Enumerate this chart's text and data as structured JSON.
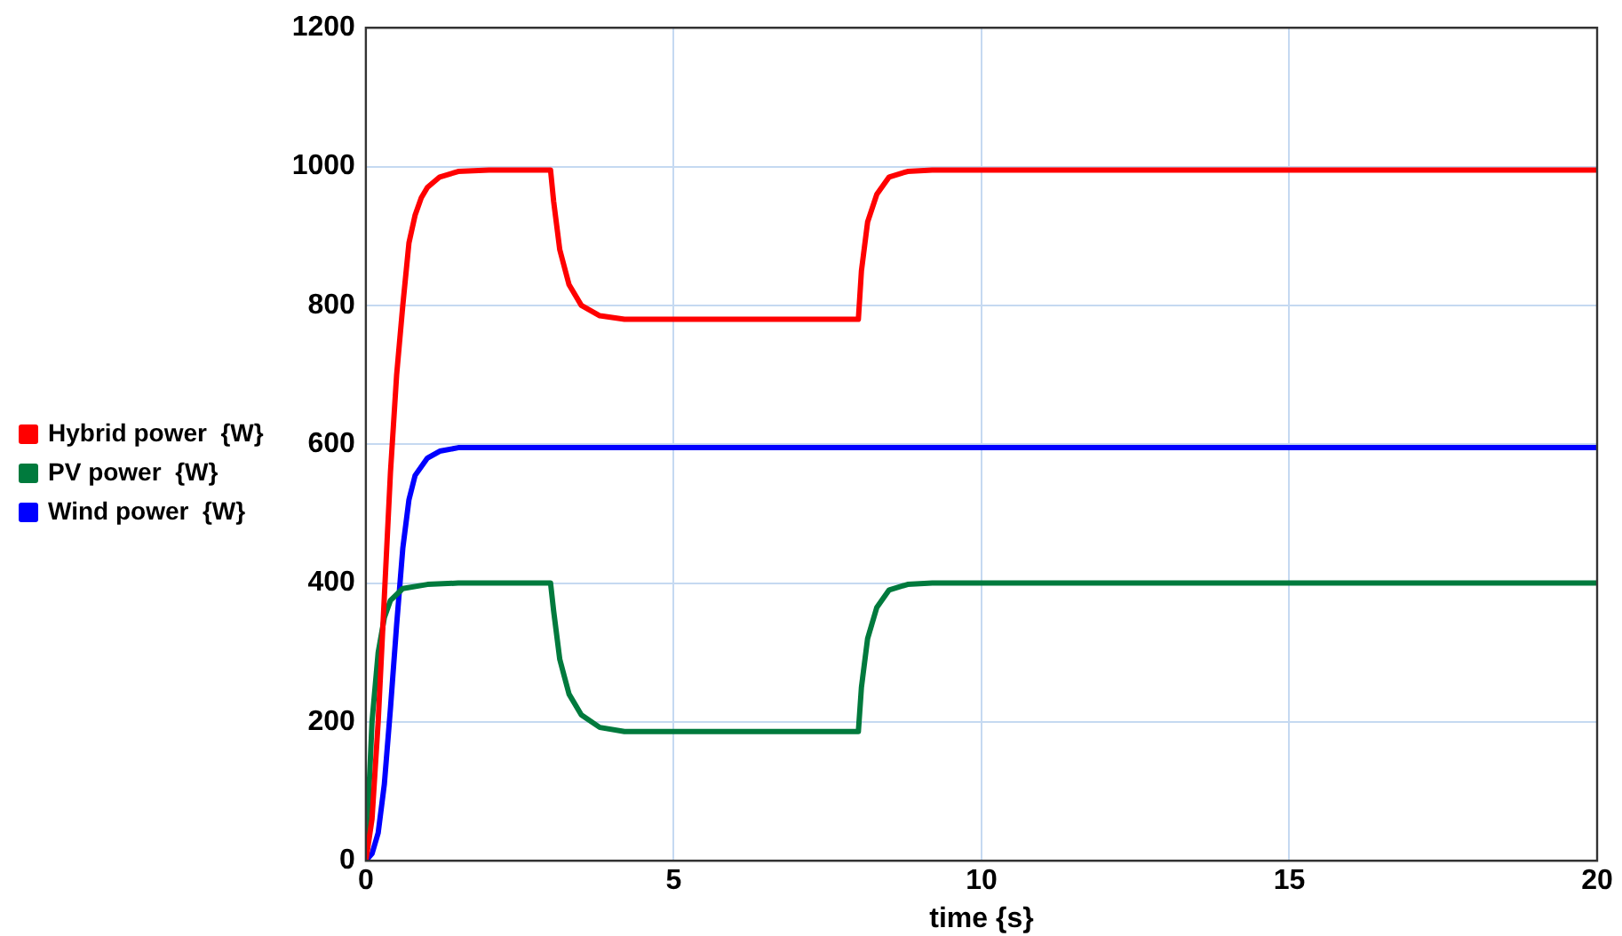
{
  "chart_data": {
    "type": "line",
    "xlabel": "time {s}",
    "xlim": [
      0,
      20
    ],
    "xticks": [
      0,
      5,
      10,
      15,
      20
    ],
    "ylim": [
      0,
      1200
    ],
    "yticks": [
      0,
      200,
      400,
      600,
      800,
      1000,
      1200
    ],
    "grid": true,
    "legend": "left",
    "marker": "none",
    "line_style": "solid",
    "series": [
      {
        "name": "Hybrid power  {W}",
        "color": "#ff0000",
        "x": [
          0,
          0.1,
          0.2,
          0.3,
          0.4,
          0.5,
          0.6,
          0.7,
          0.8,
          0.9,
          1.0,
          1.2,
          1.5,
          2,
          3,
          3.05,
          3.15,
          3.3,
          3.5,
          3.8,
          4.2,
          8,
          8.05,
          8.15,
          8.3,
          8.5,
          8.8,
          9.2,
          20
        ],
        "values": [
          0,
          60,
          200,
          380,
          560,
          700,
          800,
          890,
          930,
          955,
          970,
          985,
          993,
          995,
          995,
          950,
          880,
          830,
          800,
          785,
          780,
          780,
          850,
          920,
          960,
          985,
          993,
          995,
          995
        ]
      },
      {
        "name": "PV power  {W}",
        "color": "#007a3d",
        "x": [
          0,
          0.05,
          0.1,
          0.2,
          0.3,
          0.4,
          0.6,
          1,
          1.5,
          3,
          3.05,
          3.15,
          3.3,
          3.5,
          3.8,
          4.2,
          8,
          8.05,
          8.15,
          8.3,
          8.5,
          8.8,
          9.2,
          20
        ],
        "values": [
          0,
          100,
          200,
          300,
          350,
          375,
          392,
          398,
          400,
          400,
          360,
          290,
          240,
          210,
          192,
          186,
          186,
          250,
          320,
          365,
          390,
          398,
          400,
          400
        ]
      },
      {
        "name": "Wind power  {W}",
        "color": "#0000ff",
        "x": [
          0,
          0.1,
          0.2,
          0.3,
          0.4,
          0.5,
          0.6,
          0.7,
          0.8,
          1,
          1.2,
          1.5,
          20
        ],
        "values": [
          0,
          10,
          40,
          110,
          220,
          340,
          450,
          520,
          555,
          580,
          590,
          595,
          595
        ]
      }
    ]
  }
}
